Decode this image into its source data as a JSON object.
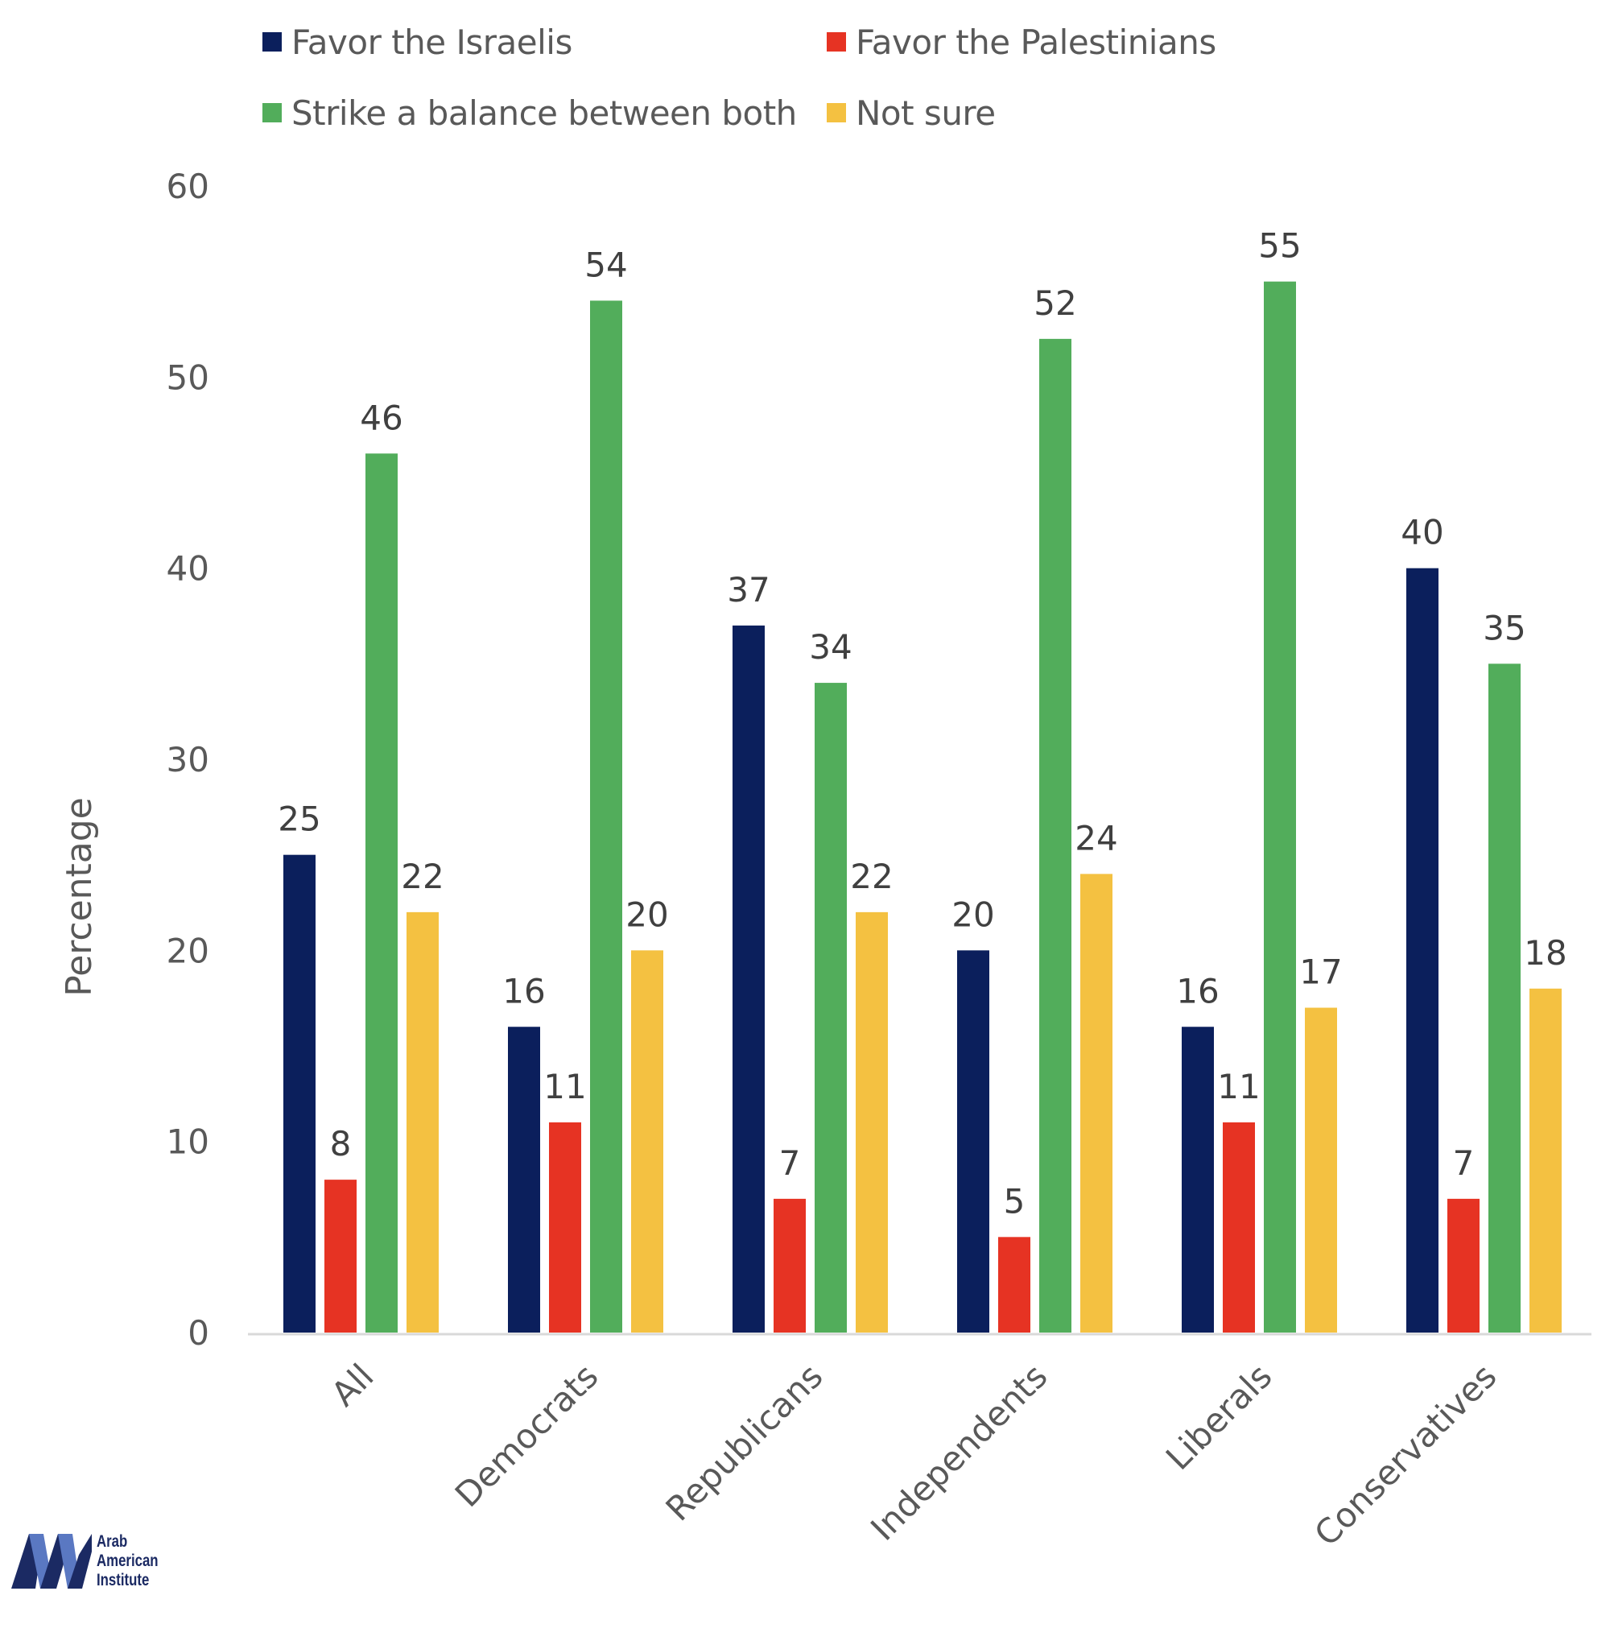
{
  "chart_data": {
    "type": "bar",
    "title": "",
    "xlabel": "",
    "ylabel": "Percentage",
    "ylim": [
      0,
      60
    ],
    "yticks": [
      0,
      10,
      20,
      30,
      40,
      50,
      60
    ],
    "grid": false,
    "legend_position": "top",
    "categories": [
      "All",
      "Democrats",
      "Republicans",
      "Independents",
      "Liberals",
      "Conservatives"
    ],
    "series": [
      {
        "name": "Favor the Israelis",
        "color": "#0b1f5c",
        "values": [
          25,
          16,
          37,
          20,
          16,
          40
        ]
      },
      {
        "name": "Favor the Palestinians",
        "color": "#e63323",
        "values": [
          8,
          11,
          7,
          5,
          11,
          7
        ]
      },
      {
        "name": "Strike a balance between both",
        "color": "#52ad5b",
        "values": [
          46,
          54,
          34,
          52,
          55,
          35
        ]
      },
      {
        "name": "Not sure",
        "color": "#f4c141",
        "values": [
          22,
          20,
          22,
          24,
          17,
          18
        ]
      }
    ],
    "data_labels": true
  },
  "logo": {
    "name": "Arab American Institute",
    "lines": [
      "Arab",
      "American",
      "Institute"
    ],
    "mark": "AAI",
    "dark_color": "#1b2a63",
    "light_color": "#5a78c2"
  }
}
